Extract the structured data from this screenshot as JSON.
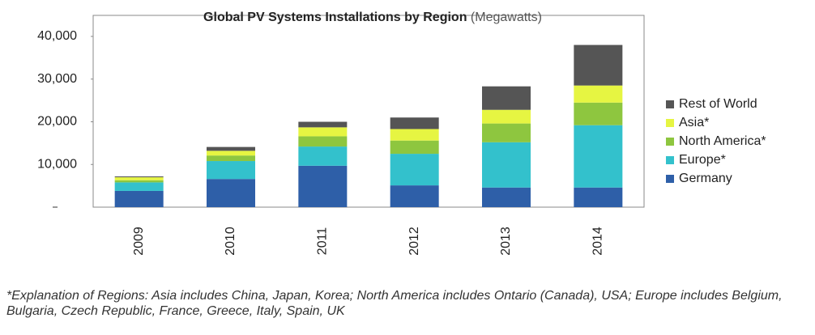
{
  "chart_data": {
    "type": "stacked_bar",
    "title": "Global PV Systems Installations by Region",
    "subtitle": "(Megawatts)",
    "categories": [
      "2009",
      "2010",
      "2011",
      "2012",
      "2013",
      "2014"
    ],
    "series": [
      {
        "name": "Germany",
        "color": "#2e5fa8",
        "values": [
          3800,
          6600,
          9700,
          5100,
          4600,
          4600
        ]
      },
      {
        "name": "Europe*",
        "color": "#33c1cc",
        "values": [
          2000,
          4200,
          4500,
          7400,
          10600,
          14600
        ]
      },
      {
        "name": "North America*",
        "color": "#8ec63f",
        "values": [
          500,
          1300,
          2400,
          3100,
          4400,
          5300
        ]
      },
      {
        "name": "Asia*",
        "color": "#e6f542",
        "values": [
          700,
          1100,
          2100,
          2700,
          3200,
          4000
        ]
      },
      {
        "name": "Rest of World",
        "color": "#555555",
        "values": [
          200,
          900,
          1300,
          2700,
          5500,
          9500
        ]
      }
    ],
    "ylim": [
      0,
      40000
    ],
    "yticks": [
      {
        "value": 10000,
        "label": "10,000"
      },
      {
        "value": 20000,
        "label": "20,000"
      },
      {
        "value": 30000,
        "label": "30,000"
      },
      {
        "value": 40000,
        "label": "40,000"
      }
    ],
    "legend": "right",
    "footnote": "*Explanation of Regions: Asia includes China, Japan, Korea; North America includes Ontario (Canada), USA; Europe includes Belgium, Bulgaria, Czech Republic, France, Greece, Italy, Spain, UK"
  }
}
